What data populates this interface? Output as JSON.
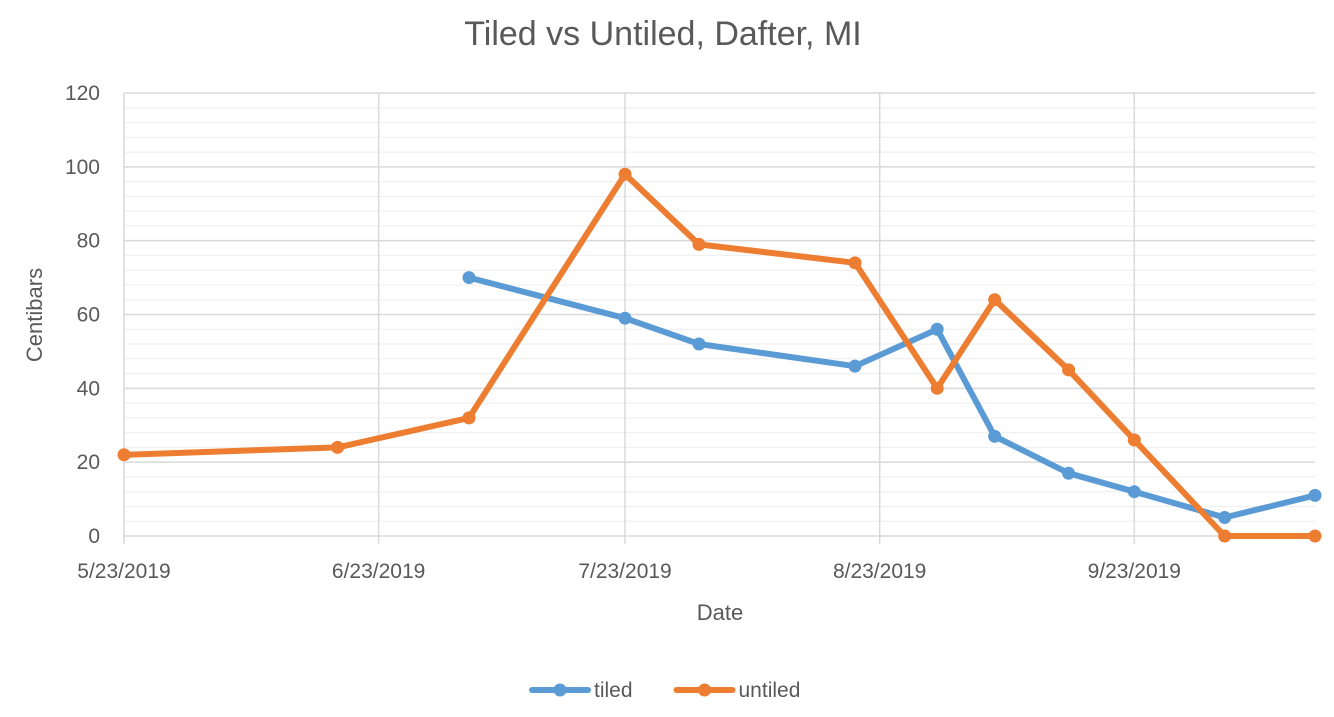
{
  "chart_data": {
    "type": "line",
    "title": "Tiled vs Untiled, Dafter, MI",
    "xlabel": "Date",
    "ylabel": "Centibars",
    "ylim": [
      0,
      120
    ],
    "yticks": [
      0,
      20,
      40,
      60,
      80,
      100,
      120
    ],
    "xlim": [
      "2019-05-23",
      "2019-10-15"
    ],
    "xticks": [
      {
        "date": "2019-05-23",
        "label": "5/23/2019"
      },
      {
        "date": "2019-06-23",
        "label": "6/23/2019"
      },
      {
        "date": "2019-07-23",
        "label": "7/23/2019"
      },
      {
        "date": "2019-08-23",
        "label": "8/23/2019"
      },
      {
        "date": "2019-09-23",
        "label": "9/23/2019"
      }
    ],
    "grid": {
      "major": true,
      "minor_y": true
    },
    "legend": "bottom",
    "series": [
      {
        "name": "tiled",
        "color": "#5B9BD5",
        "points": [
          {
            "x": "2019-07-04",
            "y": 70
          },
          {
            "x": "2019-07-23",
            "y": 59
          },
          {
            "x": "2019-08-01",
            "y": 52
          },
          {
            "x": "2019-08-20",
            "y": 46
          },
          {
            "x": "2019-08-30",
            "y": 56
          },
          {
            "x": "2019-09-06",
            "y": 27
          },
          {
            "x": "2019-09-15",
            "y": 17
          },
          {
            "x": "2019-09-23",
            "y": 12
          },
          {
            "x": "2019-10-04",
            "y": 5
          },
          {
            "x": "2019-10-15",
            "y": 11
          }
        ]
      },
      {
        "name": "untiled",
        "color": "#ED7D31",
        "points": [
          {
            "x": "2019-05-23",
            "y": 22
          },
          {
            "x": "2019-06-18",
            "y": 24
          },
          {
            "x": "2019-07-04",
            "y": 32
          },
          {
            "x": "2019-07-23",
            "y": 98
          },
          {
            "x": "2019-08-01",
            "y": 79
          },
          {
            "x": "2019-08-20",
            "y": 74
          },
          {
            "x": "2019-08-30",
            "y": 40
          },
          {
            "x": "2019-09-06",
            "y": 64
          },
          {
            "x": "2019-09-15",
            "y": 45
          },
          {
            "x": "2019-09-23",
            "y": 26
          },
          {
            "x": "2019-10-04",
            "y": 0
          },
          {
            "x": "2019-10-15",
            "y": 0
          }
        ]
      }
    ]
  }
}
